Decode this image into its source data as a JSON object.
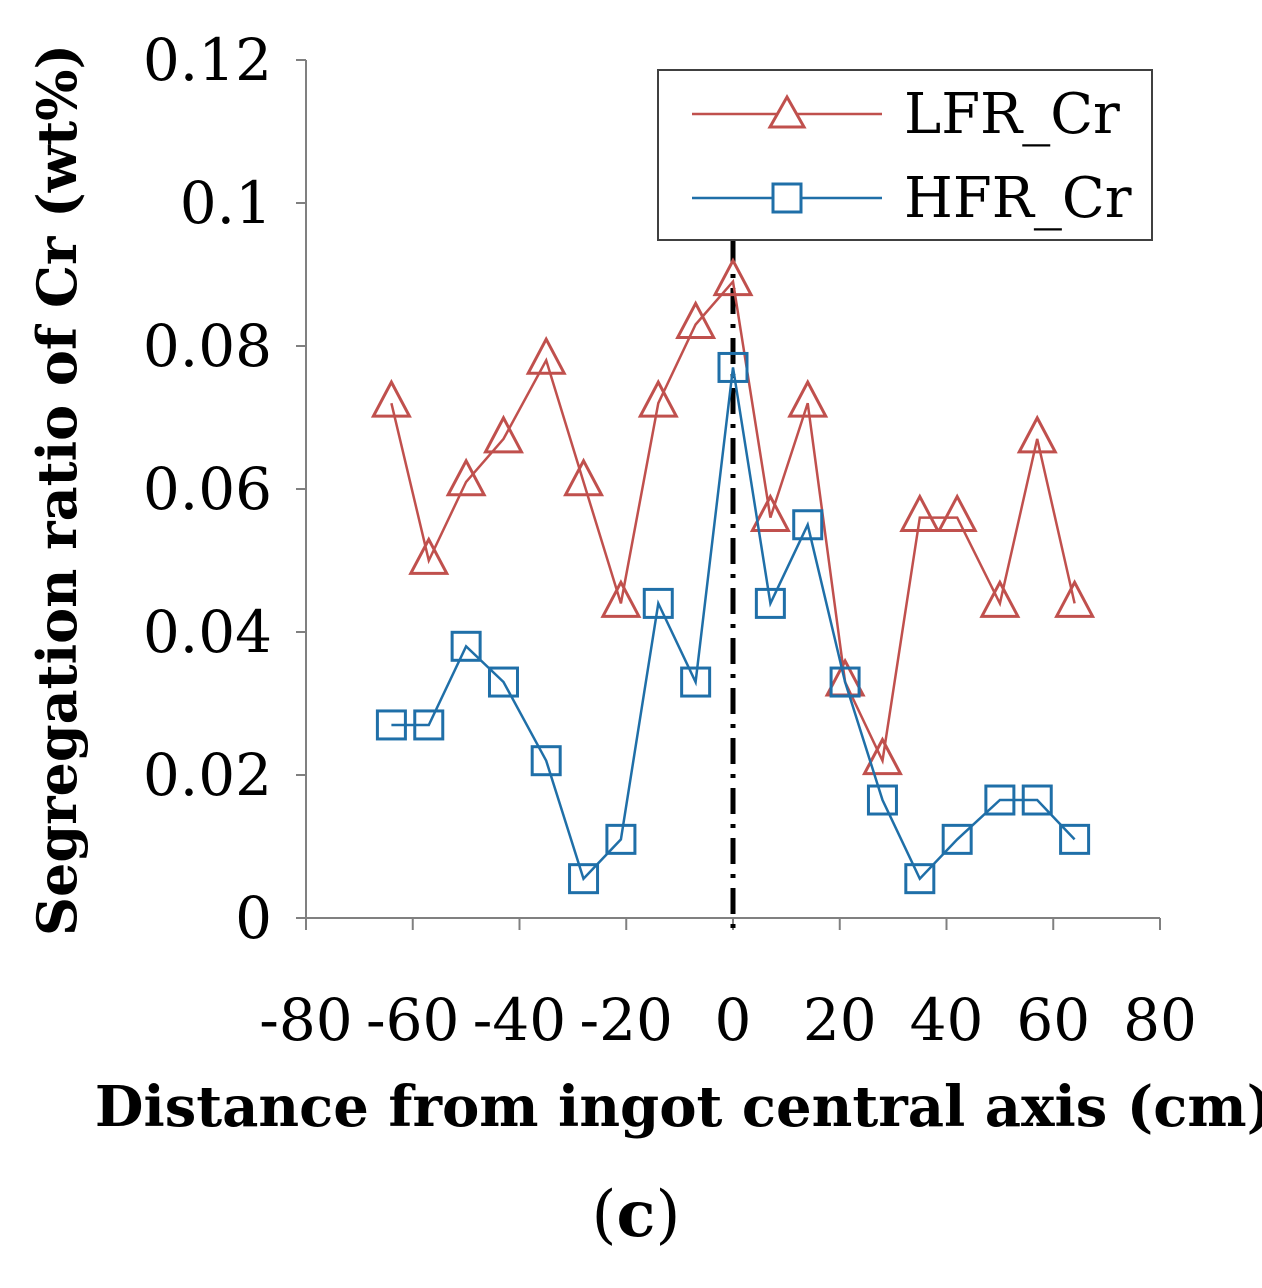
{
  "chart_data": {
    "type": "line",
    "title": "",
    "xlabel": "Distance from ingot central axis (cm)",
    "ylabel": "Segregation ratio of Cr (wt%)",
    "xlim": [
      -80,
      80
    ],
    "ylim": [
      0,
      0.12
    ],
    "xticks": [
      "-80",
      "-60",
      "-40",
      "-20",
      "0",
      "20",
      "40",
      "60",
      "80"
    ],
    "yticks": [
      "0",
      "0.02",
      "0.04",
      "0.06",
      "0.08",
      "0.1",
      "0.12"
    ],
    "panel_label": {
      "open": "(",
      "letter": "c",
      "close": ")"
    },
    "grid": false,
    "legend_position": "top-right",
    "central_axis_line": {
      "x": 0,
      "style": "dash-dot",
      "color": "#000000"
    },
    "series": [
      {
        "name": "LFR_Cr",
        "color": "#c0504d",
        "marker": "triangle",
        "x": [
          -64,
          -57,
          -50,
          -43,
          -35,
          -28,
          -21,
          -14,
          -7,
          0,
          7,
          14,
          21,
          28,
          35,
          42,
          50,
          57,
          64
        ],
        "values": [
          0.072,
          0.05,
          0.061,
          0.067,
          0.078,
          0.061,
          0.044,
          0.072,
          0.083,
          0.089,
          0.056,
          0.072,
          0.033,
          0.022,
          0.056,
          0.056,
          0.044,
          0.067,
          0.044
        ]
      },
      {
        "name": "HFR_Cr",
        "color": "#1f6fa8",
        "marker": "square",
        "x": [
          -64,
          -57,
          -50,
          -43,
          -35,
          -28,
          -21,
          -14,
          -7,
          0,
          7,
          14,
          21,
          28,
          35,
          42,
          50,
          57,
          64
        ],
        "values": [
          0.027,
          0.027,
          0.038,
          0.033,
          0.022,
          0.0055,
          0.011,
          0.044,
          0.033,
          0.077,
          0.044,
          0.055,
          0.033,
          0.0165,
          0.0055,
          0.011,
          0.0165,
          0.0165,
          0.011
        ]
      }
    ]
  }
}
